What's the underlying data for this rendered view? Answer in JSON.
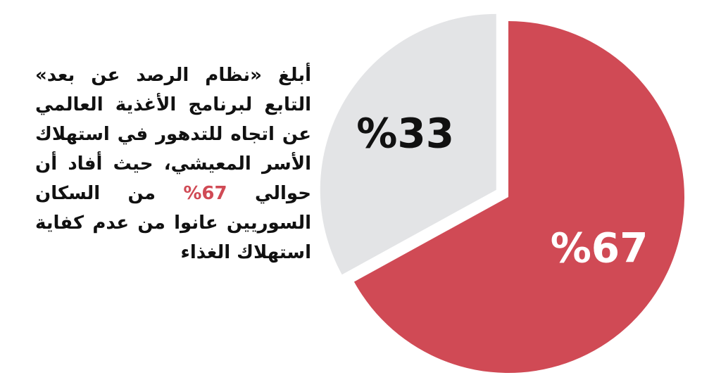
{
  "chart_data": {
    "type": "pie",
    "values": [
      67,
      33
    ],
    "value_labels": [
      "%67",
      "%33"
    ],
    "colors": [
      "#d04a55",
      "#e3e4e6"
    ],
    "label_colors": [
      "#ffffff",
      "#111111"
    ],
    "explode": [
      false,
      true
    ],
    "start_angle": 0,
    "direction": "clockwise",
    "description": {
      "before": "أبلغ «نظام الرصد عن بعد» التابع لبرنامج الأغذية العالمي عن اتجاه للتدهور في استهلاك الأسر المعيشي، حيث أفاد أن حوالي",
      "highlight": "67%",
      "after": "من السكان السوريين عانوا من عدم كفاية استهلاك الغذاء"
    }
  }
}
